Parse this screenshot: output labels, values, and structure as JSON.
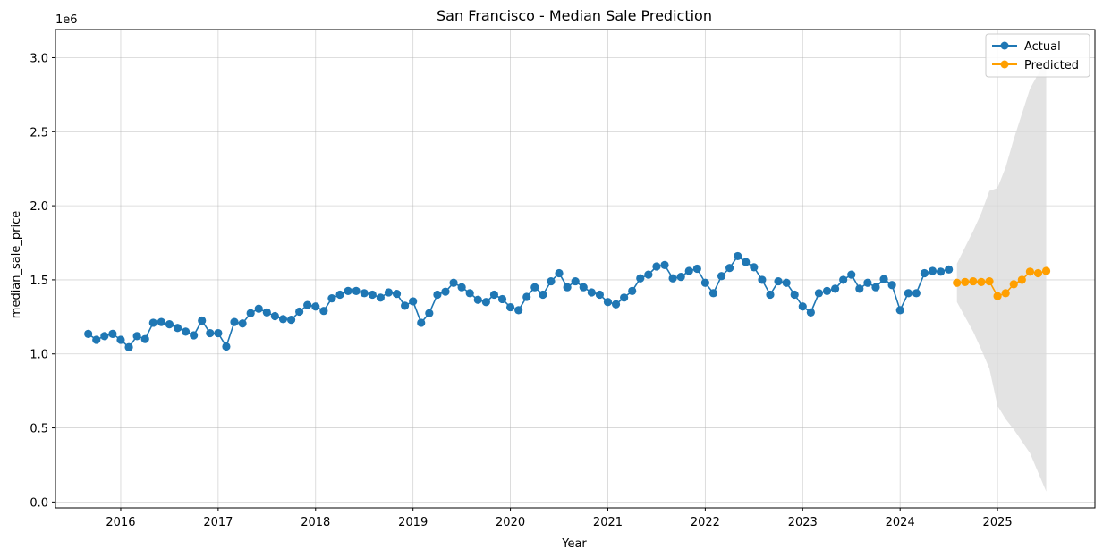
{
  "chart_data": {
    "type": "line",
    "title": "San Francisco - Median Sale Prediction",
    "xlabel": "Year",
    "ylabel": "median_sale_price",
    "y_offset_label": "1e6",
    "xlim": [
      2015.33,
      2026.0
    ],
    "ylim": [
      -40000,
      3190000
    ],
    "x_ticks": [
      2016,
      2017,
      2018,
      2019,
      2020,
      2021,
      2022,
      2023,
      2024,
      2025
    ],
    "y_ticks": [
      0,
      500000,
      1000000,
      1500000,
      2000000,
      2500000,
      3000000
    ],
    "y_tick_labels": [
      "0.0",
      "0.5",
      "1.0",
      "1.5",
      "2.0",
      "2.5",
      "3.0"
    ],
    "grid": true,
    "legend_position": "top-right",
    "colors": {
      "actual": "#1f77b4",
      "predicted": "#ff9f00",
      "band": "#d9d9d9"
    },
    "series": [
      {
        "name": "Actual",
        "start": "2015-09",
        "values": [
          1135000,
          1095000,
          1120000,
          1135000,
          1095000,
          1045000,
          1120000,
          1100000,
          1210000,
          1215000,
          1200000,
          1175000,
          1150000,
          1125000,
          1225000,
          1140000,
          1140000,
          1050000,
          1215000,
          1205000,
          1275000,
          1305000,
          1280000,
          1255000,
          1235000,
          1230000,
          1285000,
          1330000,
          1320000,
          1290000,
          1375000,
          1400000,
          1425000,
          1425000,
          1410000,
          1400000,
          1380000,
          1415000,
          1405000,
          1325000,
          1355000,
          1210000,
          1275000,
          1400000,
          1420000,
          1480000,
          1450000,
          1410000,
          1365000,
          1350000,
          1400000,
          1370000,
          1315000,
          1295000,
          1385000,
          1450000,
          1400000,
          1490000,
          1545000,
          1450000,
          1490000,
          1450000,
          1415000,
          1400000,
          1350000,
          1335000,
          1380000,
          1425000,
          1510000,
          1535000,
          1590000,
          1600000,
          1510000,
          1520000,
          1560000,
          1575000,
          1480000,
          1410000,
          1525000,
          1580000,
          1660000,
          1620000,
          1585000,
          1500000,
          1400000,
          1490000,
          1480000,
          1400000,
          1320000,
          1280000,
          1410000,
          1425000,
          1440000,
          1500000,
          1535000,
          1440000,
          1480000,
          1450000,
          1505000,
          1465000,
          1295000,
          1410000,
          1410000,
          1545000,
          1560000,
          1555000,
          1570000
        ]
      },
      {
        "name": "Predicted",
        "start": "2024-08",
        "values": [
          1480000,
          1485000,
          1490000,
          1485000,
          1490000,
          1390000,
          1410000,
          1470000,
          1500000,
          1555000,
          1545000,
          1560000
        ],
        "lower": [
          1350000,
          1250000,
          1150000,
          1030000,
          900000,
          650000,
          560000,
          490000,
          410000,
          330000,
          200000,
          70000
        ],
        "upper": [
          1610000,
          1720000,
          1830000,
          1950000,
          2100000,
          2120000,
          2260000,
          2450000,
          2620000,
          2790000,
          2890000,
          2990000
        ]
      }
    ]
  }
}
